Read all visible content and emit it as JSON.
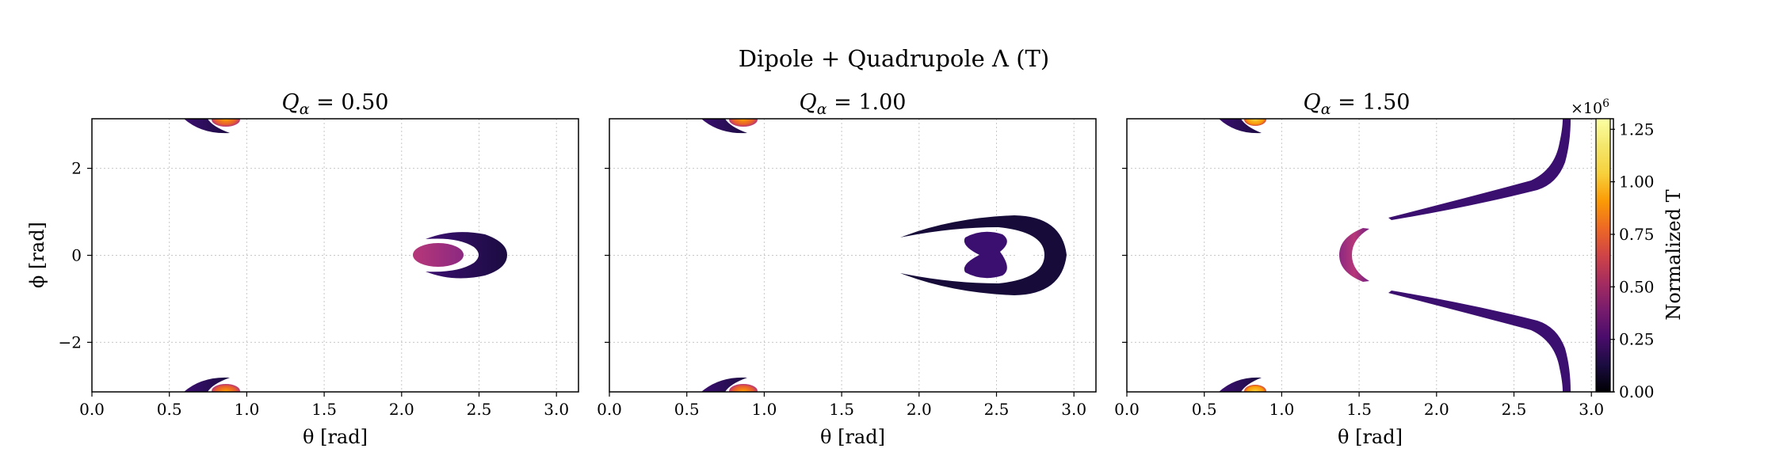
{
  "suptitle": "Dipole + Quadrupole Λ (T)",
  "chart_data": [
    {
      "type": "heatmap",
      "title": "Q_α = 0.50",
      "title_parts": {
        "var": "Q",
        "sub": "α",
        "rest": " = 0.50"
      },
      "xlabel": "θ [rad]",
      "ylabel": "ϕ [rad]",
      "xlim": [
        0,
        3.14159
      ],
      "ylim": [
        -3.14159,
        3.14159
      ],
      "xticks": [
        "0.0",
        "0.5",
        "1.0",
        "1.5",
        "2.0",
        "2.5",
        "3.0"
      ],
      "yticks": [
        "−2",
        "0",
        "2"
      ],
      "grid": true,
      "features": [
        {
          "name": "top-crescent",
          "theta_center": 0.82,
          "phi_center": 3.05,
          "value": 0.2
        },
        {
          "name": "top-hot-spot",
          "theta_center": 0.87,
          "phi_center": 3.1,
          "value": 0.85
        },
        {
          "name": "bottom-crescent",
          "theta_center": 0.82,
          "phi_center": -3.05,
          "value": 0.2
        },
        {
          "name": "bottom-hot-spot",
          "theta_center": 0.87,
          "phi_center": -3.1,
          "value": 0.85
        },
        {
          "name": "inner-lobe",
          "theta_center": 2.25,
          "phi_center": 0.0,
          "value": 0.45
        },
        {
          "name": "outer-crescent",
          "theta_center": 2.4,
          "phi_center": 0.0,
          "value": 0.2
        }
      ]
    },
    {
      "type": "heatmap",
      "title": "Q_α = 1.00",
      "title_parts": {
        "var": "Q",
        "sub": "α",
        "rest": " = 1.00"
      },
      "xlabel": "θ [rad]",
      "ylabel": "",
      "xlim": [
        0,
        3.14159
      ],
      "ylim": [
        -3.14159,
        3.14159
      ],
      "xticks": [
        "0.0",
        "0.5",
        "1.0",
        "1.5",
        "2.0",
        "2.5",
        "3.0"
      ],
      "yticks": [],
      "grid": true,
      "features": [
        {
          "name": "top-crescent",
          "theta_center": 0.82,
          "phi_center": 3.05,
          "value": 0.2
        },
        {
          "name": "top-hot-spot",
          "theta_center": 0.87,
          "phi_center": 3.1,
          "value": 0.85
        },
        {
          "name": "bottom-crescent",
          "theta_center": 0.82,
          "phi_center": -3.05,
          "value": 0.2
        },
        {
          "name": "bottom-hot-spot",
          "theta_center": 0.87,
          "phi_center": -3.1,
          "value": 0.85
        },
        {
          "name": "inner-lobe",
          "theta_center": 2.5,
          "phi_center": 0.0,
          "value": 0.2
        },
        {
          "name": "outer-band",
          "theta_center": 2.55,
          "phi_center": 0.0,
          "value": 0.12
        }
      ]
    },
    {
      "type": "heatmap",
      "title": "Q_α = 1.50",
      "title_parts": {
        "var": "Q",
        "sub": "α",
        "rest": " = 1.50"
      },
      "xlabel": "θ [rad]",
      "ylabel": "",
      "xlim": [
        0,
        3.14159
      ],
      "ylim": [
        -3.14159,
        3.14159
      ],
      "xticks": [
        "0.0",
        "0.5",
        "1.0",
        "1.5",
        "2.0",
        "2.5",
        "3.0"
      ],
      "yticks": [],
      "grid": true,
      "features": [
        {
          "name": "top-crescent",
          "theta_center": 0.8,
          "phi_center": 3.05,
          "value": 0.2
        },
        {
          "name": "top-hot-spot",
          "theta_center": 0.83,
          "phi_center": 3.1,
          "value": 1.1
        },
        {
          "name": "bottom-crescent",
          "theta_center": 0.8,
          "phi_center": -3.05,
          "value": 0.2
        },
        {
          "name": "bottom-hot-spot",
          "theta_center": 0.83,
          "phi_center": -3.1,
          "value": 1.1
        },
        {
          "name": "v-band",
          "theta_center": 1.55,
          "phi_center": 0.0,
          "value": 0.5
        },
        {
          "name": "upper-band",
          "theta_center": 2.5,
          "phi_center": 1.3,
          "value": 0.25
        },
        {
          "name": "lower-band",
          "theta_center": 2.5,
          "phi_center": -1.3,
          "value": 0.25
        }
      ]
    }
  ],
  "colorbar": {
    "label": "Normalized T",
    "multiplier_base": "×10",
    "multiplier_exp": "6",
    "range": [
      0,
      1.3
    ],
    "ticks": [
      0.0,
      0.25,
      0.5,
      0.75,
      1.0,
      1.25
    ],
    "tick_labels": [
      "0.00",
      "0.25",
      "0.50",
      "0.75",
      "1.00",
      "1.25"
    ],
    "colormap": "inferno"
  }
}
